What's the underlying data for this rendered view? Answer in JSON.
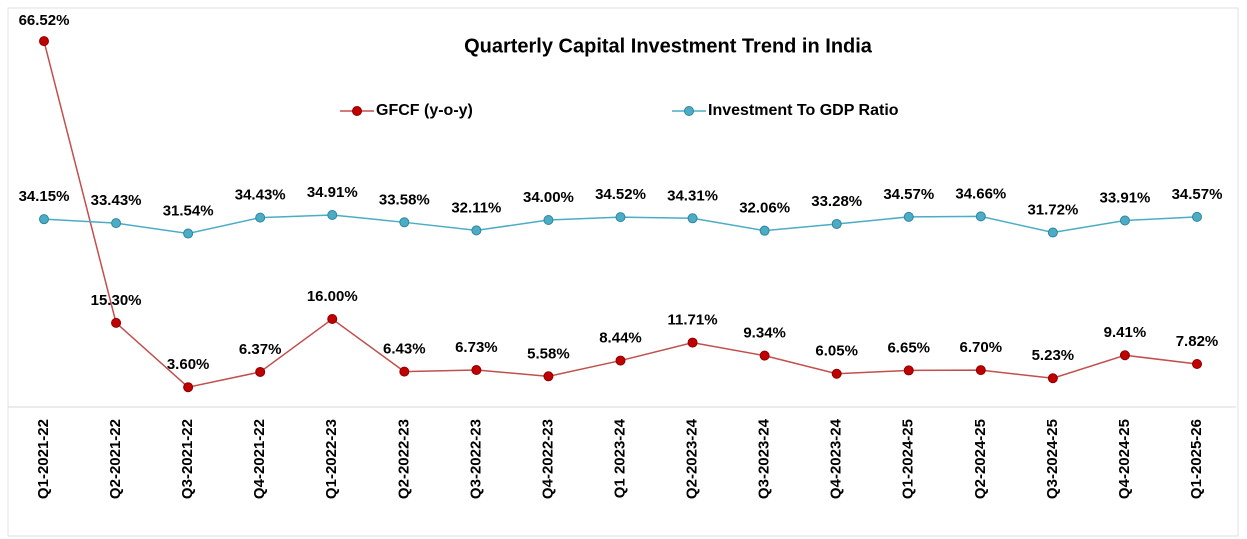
{
  "chart_data": {
    "type": "line",
    "title": "Quarterly Capital Investment Trend in India",
    "categories": [
      "Q1-2021-22",
      "Q2-2021-22",
      "Q3-2021-22",
      "Q4-2021-22",
      "Q1-2022-23",
      "Q2-2022-23",
      "Q3-2022-23",
      "Q4-2022-23",
      "Q1 2023-24",
      "Q2-2023-24",
      "Q3-2023-24",
      "Q4-2023-24",
      "Q1-2024-25",
      "Q2-2024-25",
      "Q3-2024-25",
      "Q4-2024-25",
      "Q1-2025-26"
    ],
    "series": [
      {
        "name": "GFCF (y-o-y)",
        "color": "#c0504d",
        "marker": "#c00000",
        "values": [
          66.52,
          15.3,
          3.6,
          6.37,
          16.0,
          6.43,
          6.73,
          5.58,
          8.44,
          11.71,
          9.34,
          6.05,
          6.65,
          6.7,
          5.23,
          9.41,
          7.82
        ],
        "value_labels": [
          "66.52%",
          "15.30%",
          "3.60%",
          "6.37%",
          "16.00%",
          "6.43%",
          "6.73%",
          "5.58%",
          "8.44%",
          "11.71%",
          "9.34%",
          "6.05%",
          "6.65%",
          "6.70%",
          "5.23%",
          "9.41%",
          "7.82%"
        ]
      },
      {
        "name": "Investment To GDP Ratio",
        "color": "#4bacc6",
        "marker": "#4bacc6",
        "values": [
          34.15,
          33.43,
          31.54,
          34.43,
          34.91,
          33.58,
          32.11,
          34.0,
          34.52,
          34.31,
          32.06,
          33.28,
          34.57,
          34.66,
          31.72,
          33.91,
          34.57
        ],
        "value_labels": [
          "34.15%",
          "33.43%",
          "31.54%",
          "34.43%",
          "34.91%",
          "33.58%",
          "32.11%",
          "34.00%",
          "34.52%",
          "34.31%",
          "32.06%",
          "33.28%",
          "34.57%",
          "34.66%",
          "31.72%",
          "33.91%",
          "34.57%"
        ]
      }
    ],
    "ylim": [
      0,
      72
    ],
    "legend": "top"
  }
}
